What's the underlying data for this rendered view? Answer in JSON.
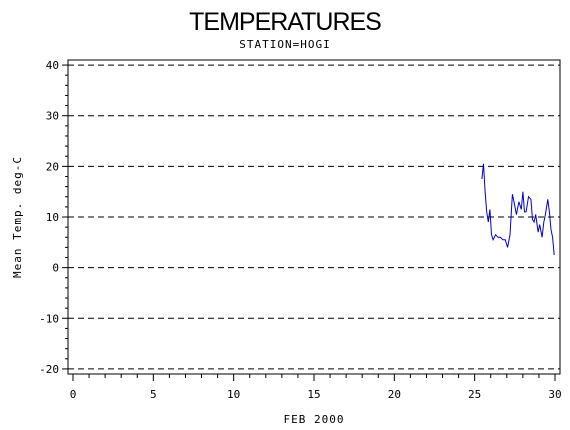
{
  "chart_data": {
    "type": "line",
    "title": "TEMPERATURES",
    "subtitle": "STATION=HOGI",
    "xlabel": "FEB 2000",
    "ylabel": "Mean Temp. deg-C",
    "xlim": [
      0,
      30
    ],
    "ylim": [
      -21,
      41
    ],
    "xticks": [
      0,
      5,
      10,
      15,
      20,
      25,
      30
    ],
    "yticks": [
      -20,
      -10,
      0,
      10,
      20,
      30,
      40
    ],
    "grid": "horizontal-dashed",
    "series": [
      {
        "color": "#0000cc",
        "x": [
          25.45,
          25.55,
          25.65,
          25.75,
          25.85,
          25.95,
          26.05,
          26.15,
          26.3,
          26.45,
          26.6,
          26.75,
          26.9,
          27.05,
          27.2,
          27.35,
          27.45,
          27.6,
          27.75,
          27.9,
          28.0,
          28.1,
          28.2,
          28.35,
          28.5,
          28.6,
          28.7,
          28.8,
          28.95,
          29.05,
          29.2,
          29.3,
          29.4,
          29.55,
          29.65,
          29.75,
          29.85,
          29.95
        ],
        "y": [
          17.5,
          20.5,
          15.0,
          11.0,
          9.0,
          11.5,
          6.5,
          5.5,
          6.5,
          6.0,
          6.0,
          5.5,
          5.5,
          4.0,
          6.5,
          14.5,
          13.0,
          10.5,
          13.0,
          11.5,
          15.0,
          11.0,
          11.0,
          14.0,
          13.5,
          9.5,
          9.0,
          10.5,
          7.0,
          8.5,
          6.0,
          9.0,
          10.5,
          13.5,
          11.0,
          7.5,
          6.0,
          2.5
        ]
      }
    ]
  }
}
